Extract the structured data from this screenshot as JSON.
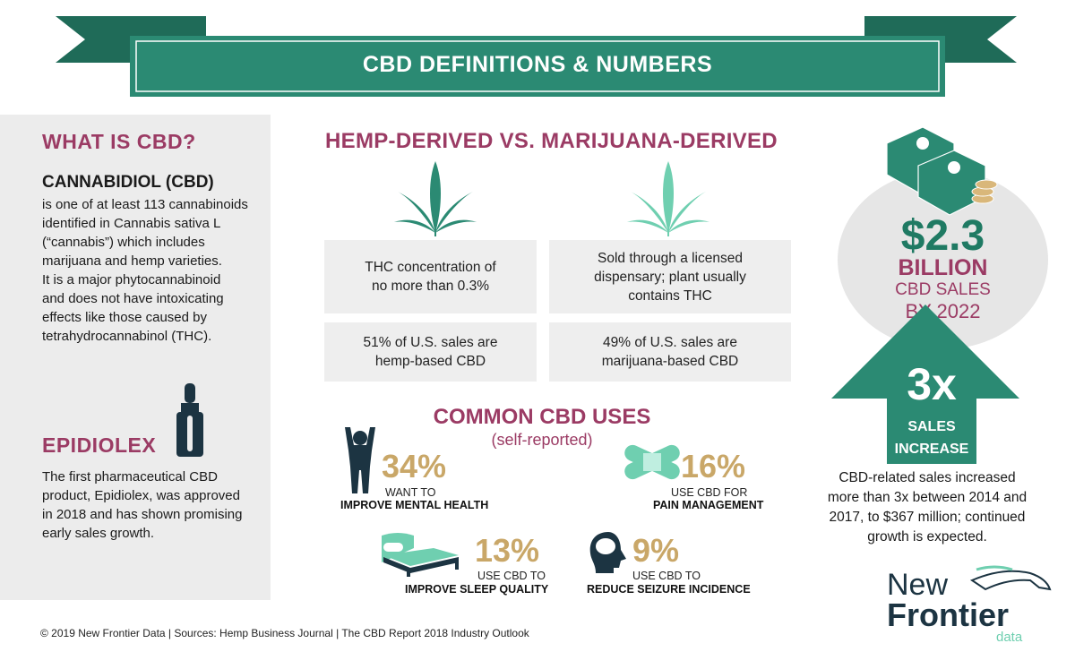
{
  "header": {
    "title": "CBD DEFINITIONS & NUMBERS"
  },
  "what_is": {
    "heading": "WHAT IS CBD?",
    "term": "CANNABIDIOL (CBD)",
    "lines": [
      "is one of at least 113 cannabinoids",
      "identified in Cannabis sativa L",
      "(“cannabis”) which includes",
      "marijuana and hemp varieties.",
      "It is a major phytocannabinoid",
      "and does not have intoxicating",
      "effects like those caused by",
      "tetrahydrocannabinol (THC)."
    ]
  },
  "epidiolex": {
    "heading": "EPIDIOLEX",
    "lines": [
      "The first pharmaceutical CBD",
      "product, Epidiolex, was approved",
      "in 2018 and has shown promising",
      "early sales growth."
    ]
  },
  "comparison": {
    "heading": "HEMP-DERIVED VS. MARIJUANA-DERIVED",
    "hemp": [
      "THC concentration of",
      "no more than 0.3%",
      "51% of U.S. sales are",
      "hemp-based CBD"
    ],
    "marijuana": [
      "Sold through a licensed",
      "dispensary; plant usually",
      "contains THC",
      "49% of U.S. sales are",
      "marijuana-based CBD"
    ]
  },
  "uses": {
    "heading": "COMMON CBD USES",
    "subheading": "(self-reported)",
    "items": [
      {
        "value": "34%",
        "line1": "WANT TO",
        "line2": "IMPROVE MENTAL HEALTH",
        "icon": "stressed-person-icon"
      },
      {
        "value": "16%",
        "line1": "USE CBD FOR",
        "line2": "PAIN MANAGEMENT",
        "icon": "bandage-icon"
      },
      {
        "value": "13%",
        "line1": "USE CBD TO",
        "line2": "IMPROVE SLEEP QUALITY",
        "icon": "bed-icon"
      },
      {
        "value": "9%",
        "line1": "USE CBD TO",
        "line2": "REDUCE SEIZURE INCIDENCE",
        "icon": "brain-head-icon"
      }
    ]
  },
  "sales": {
    "value": "$2.3",
    "unit": "BILLION",
    "line1": "CBD SALES",
    "line2": "BY 2022",
    "growth": "3x",
    "growth_l1": "SALES",
    "growth_l2": "INCREASE",
    "desc": [
      "CBD-related sales increased",
      "more than 3x between 2014 and",
      "2017, to $367 million; continued",
      "growth is expected."
    ]
  },
  "logo": {
    "line1": "New",
    "line2": "Frontier",
    "line3": "data"
  },
  "footer": "© 2019  New Frontier Data |  Sources: Hemp Business Journal  | The CBD Report 2018 Industry Outlook",
  "colors": {
    "green": "#2b8a73",
    "dark_green": "#1f6b58",
    "maroon": "#9b3b64",
    "gold": "#c9a768",
    "navy": "#1c3442",
    "mint": "#6fcfb0"
  }
}
